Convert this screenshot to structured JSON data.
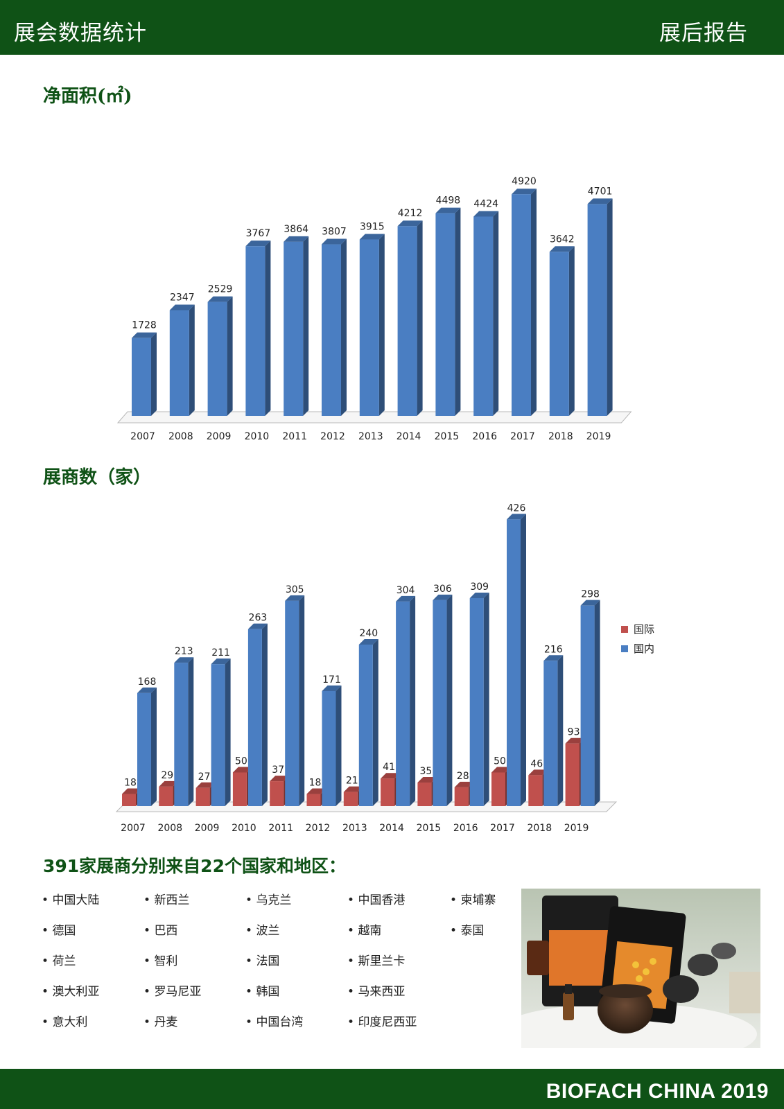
{
  "header": {
    "left_title": "展会数据统计",
    "right_title": "展后报告"
  },
  "sections": {
    "area_title": "净面积(㎡)",
    "exhibitors_title": "展商数（家）",
    "countries_heading": "391家展商分别来自22个国家和地区："
  },
  "chart_data": [
    {
      "type": "bar",
      "title": "净面积(㎡)",
      "categories": [
        "2007",
        "2008",
        "2009",
        "2010",
        "2011",
        "2012",
        "2013",
        "2014",
        "2015",
        "2016",
        "2017",
        "2018",
        "2019"
      ],
      "values": [
        1728,
        2347,
        2529,
        3767,
        3864,
        3807,
        3915,
        4212,
        4498,
        4424,
        4920,
        3642,
        4701
      ],
      "ylim": [
        0,
        5000
      ],
      "color": "#4a7ec2",
      "grid": false,
      "legend": "none"
    },
    {
      "type": "bar",
      "title": "展商数（家）",
      "categories": [
        "2007",
        "2008",
        "2009",
        "2010",
        "2011",
        "2012",
        "2013",
        "2014",
        "2015",
        "2016",
        "2017",
        "2018",
        "2019"
      ],
      "series": [
        {
          "name": "国际",
          "values": [
            18,
            29,
            27,
            50,
            37,
            18,
            21,
            41,
            35,
            28,
            50,
            46,
            93
          ],
          "color": "#c0504d"
        },
        {
          "name": "国内",
          "values": [
            168,
            213,
            211,
            263,
            305,
            171,
            240,
            304,
            306,
            309,
            426,
            216,
            298
          ],
          "color": "#4a7ec2"
        }
      ],
      "ylim": [
        0,
        440
      ],
      "grid": false,
      "legend": "right"
    }
  ],
  "countries": {
    "columns": [
      [
        "中国大陆",
        "德国",
        "荷兰",
        "澳大利亚",
        "意大利"
      ],
      [
        "新西兰",
        "巴西",
        "智利",
        "罗马尼亚",
        "丹麦"
      ],
      [
        "乌克兰",
        "波兰",
        "法国",
        "韩国",
        "中国台湾"
      ],
      [
        "中国香港",
        "越南",
        "斯里兰卡",
        "马来西亚",
        "印度尼西亚"
      ],
      [
        "柬埔寨",
        "泰国"
      ]
    ],
    "bullet": "•"
  },
  "footer": {
    "text": "BIOFACH CHINA 2019"
  }
}
